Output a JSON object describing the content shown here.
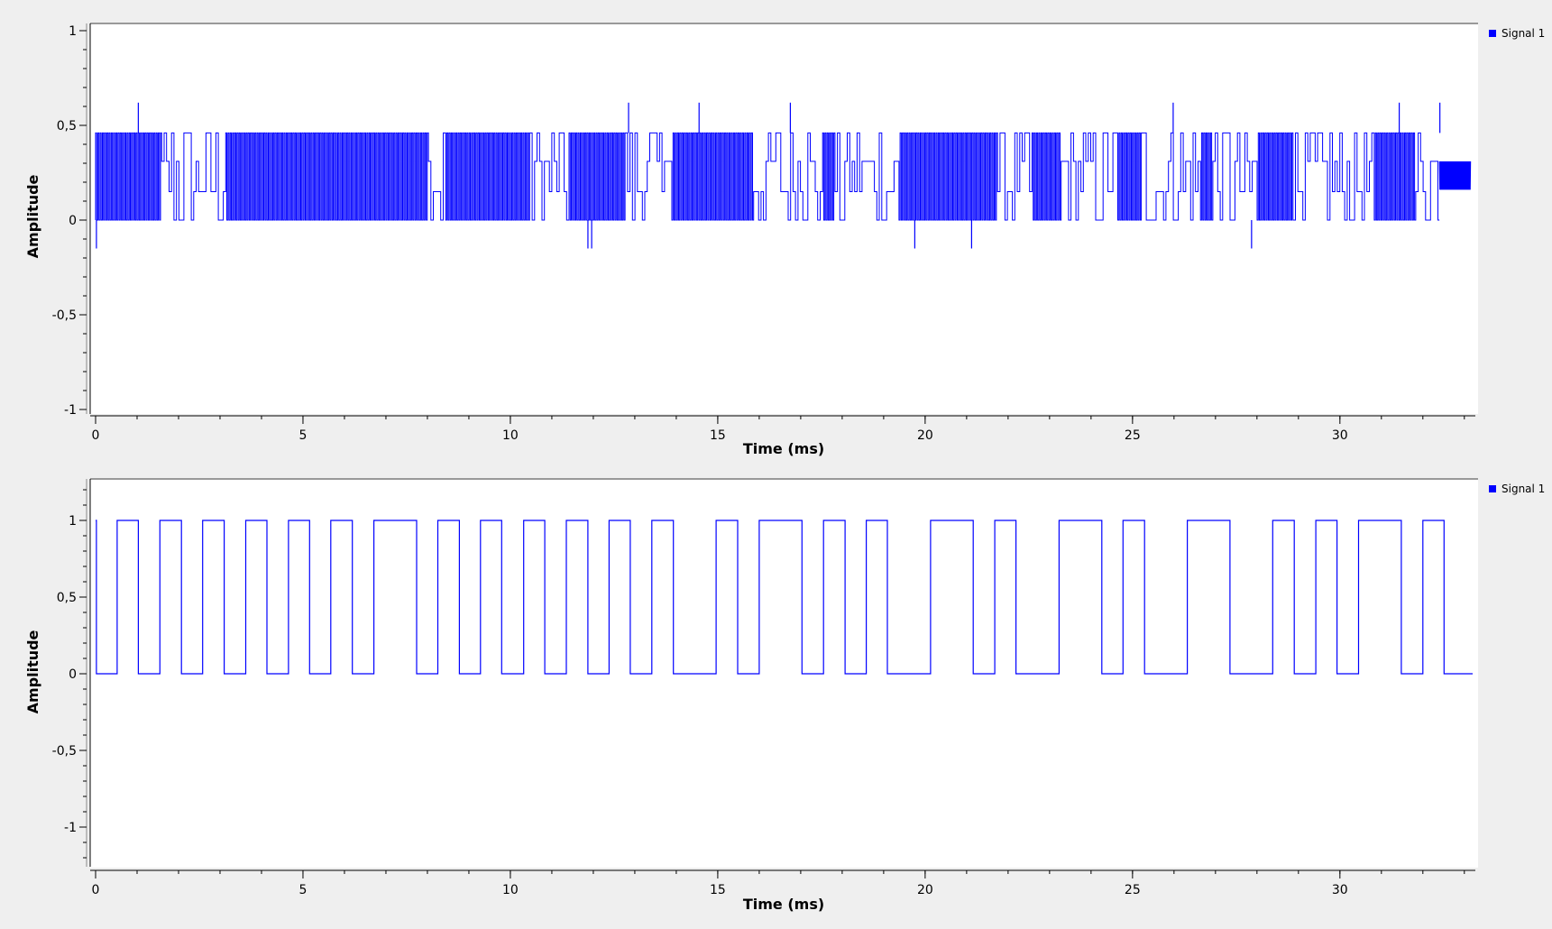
{
  "window": {
    "background": "#efefef",
    "plot_background": "#ffffff",
    "frame_color": "#999999"
  },
  "chart_data": [
    {
      "type": "line",
      "id": "top",
      "xlabel": "Time (ms)",
      "ylabel": "Amplitude",
      "xlim": [
        0,
        33.2
      ],
      "ylim": [
        -1,
        1
      ],
      "xticks": [
        0,
        5,
        10,
        15,
        20,
        25,
        30
      ],
      "xtick_labels": [
        "0",
        "5",
        "10",
        "15",
        "20",
        "25",
        "30"
      ],
      "yticks": [
        1,
        0.5,
        0,
        -0.5,
        -1
      ],
      "ytick_labels": [
        "1",
        "0,5",
        "0",
        "-0,5",
        "-1"
      ],
      "legend": {
        "position": "top-right",
        "entries": [
          "Signal 1"
        ]
      },
      "series": [
        {
          "name": "Signal 1",
          "color": "#0000ff",
          "style": "dense-modulated",
          "levels": [
            0,
            0.15,
            0.31,
            0.46
          ],
          "x_end": 32.4,
          "tail_range": [
            0.16,
            0.31
          ],
          "spikes_up": [
            1.03,
            12.85,
            14.55,
            16.75,
            25.98,
            31.43,
            32.41
          ],
          "spikes_up_value": 0.62,
          "spikes_down": [
            0.02,
            11.87,
            11.96,
            19.75,
            21.12,
            27.87
          ],
          "spikes_down_value": -0.15
        }
      ]
    },
    {
      "type": "line",
      "id": "bottom",
      "xlabel": "Time (ms)",
      "ylabel": "Amplitude",
      "xlim": [
        0,
        33.2
      ],
      "ylim": [
        -1.25,
        1.25
      ],
      "xticks": [
        0,
        5,
        10,
        15,
        20,
        25,
        30
      ],
      "xtick_labels": [
        "0",
        "5",
        "10",
        "15",
        "20",
        "25",
        "30"
      ],
      "yticks": [
        1,
        0.5,
        0,
        -0.5,
        -1
      ],
      "ytick_labels": [
        "1",
        "0,5",
        "0",
        "-0,5",
        "-1"
      ],
      "legend": {
        "position": "top-right",
        "entries": [
          "Signal 1"
        ]
      },
      "series": [
        {
          "name": "Signal 1",
          "color": "#0000ff",
          "style": "square-wave",
          "start_value": 1,
          "transitions": [
            0.02,
            0.52,
            1.03,
            1.55,
            2.07,
            2.58,
            3.1,
            3.62,
            4.13,
            4.65,
            5.16,
            5.67,
            6.19,
            6.71,
            7.74,
            8.25,
            8.77,
            9.28,
            9.79,
            10.32,
            10.83,
            11.35,
            11.87,
            12.38,
            12.89,
            13.41,
            13.93,
            14.96,
            15.48,
            16.0,
            17.03,
            17.55,
            18.07,
            18.58,
            19.09,
            20.13,
            21.16,
            21.68,
            22.19,
            23.23,
            24.26,
            24.77,
            25.29,
            26.32,
            27.35,
            28.38,
            28.9,
            29.42,
            29.93,
            30.45,
            31.48,
            32.0,
            32.51,
            33.2
          ]
        }
      ]
    }
  ]
}
